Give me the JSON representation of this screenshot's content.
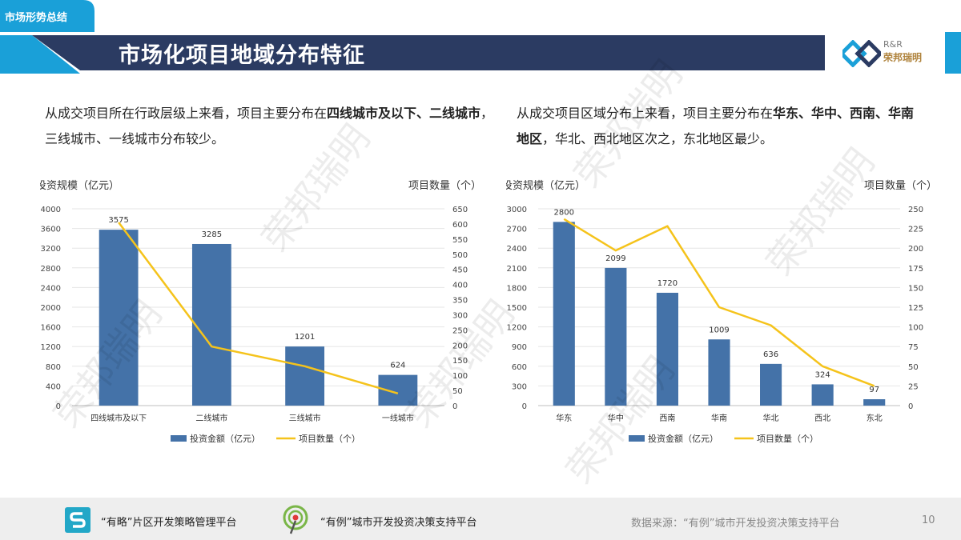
{
  "header": {
    "section_tag": "市场形势总结",
    "title": "市场化项目地域分布特征",
    "logo_text_en": "R&R",
    "logo_text_cn": "荣邦瑞明"
  },
  "left_text": {
    "p1": "从成交项目所在行政层级上来看，项目主要分布在",
    "b1": "四线城市及以下、二线城市",
    "p2": "，三线城市、一线城市分布较少。"
  },
  "right_text": {
    "p1": "从成交项目区域分布上来看，项目主要分布在",
    "b1": "华东、华中、西南、华南地区",
    "p2": "，华北、西北地区次之，东北地区最少。"
  },
  "watermark_text": "荣邦瑞明",
  "colors": {
    "bar": "#4472a8",
    "line": "#f5c31b",
    "banner": "#2b3b62",
    "accent": "#1aa0d8"
  },
  "chart_data": [
    {
      "type": "bar",
      "y_axis_title": "投资规模（亿元）",
      "y2_axis_title": "项目数量（个）",
      "categories": [
        "四线城市及以下",
        "二线城市",
        "三线城市",
        "一线城市"
      ],
      "series": [
        {
          "name": "投资金额（亿元）",
          "type": "bar",
          "axis": "left",
          "values": [
            3575,
            3285,
            1201,
            624
          ]
        },
        {
          "name": "项目数量（个）",
          "type": "line",
          "axis": "right",
          "values": [
            605,
            195,
            130,
            40
          ]
        }
      ],
      "data_labels": [
        "3575",
        "3285",
        "1201",
        "624"
      ],
      "ylim": [
        0,
        4000
      ],
      "y_ticks": [
        "0",
        "400",
        "800",
        "1200",
        "1600",
        "2000",
        "2400",
        "2800",
        "3200",
        "3600",
        "4000"
      ],
      "y2lim": [
        0,
        650
      ],
      "y2_ticks": [
        "0",
        "50",
        "100",
        "150",
        "200",
        "250",
        "300",
        "350",
        "400",
        "450",
        "500",
        "550",
        "600",
        "650"
      ],
      "legend": "bottom",
      "grid": true
    },
    {
      "type": "bar",
      "y_axis_title": "投资规模（亿元）",
      "y2_axis_title": "项目数量（个）",
      "categories": [
        "华东",
        "华中",
        "西南",
        "华南",
        "华北",
        "西北",
        "东北"
      ],
      "series": [
        {
          "name": "投资金额（亿元）",
          "type": "bar",
          "axis": "left",
          "values": [
            2800,
            2099,
            1720,
            1009,
            636,
            324,
            97
          ]
        },
        {
          "name": "项目数量（个）",
          "type": "line",
          "axis": "right",
          "values": [
            237,
            197,
            228,
            125,
            102,
            50,
            25
          ]
        }
      ],
      "data_labels": [
        "2800",
        "2099",
        "1720",
        "1009",
        "636",
        "324",
        "97"
      ],
      "ylim": [
        0,
        3000
      ],
      "y_ticks": [
        "0",
        "300",
        "600",
        "900",
        "1200",
        "1500",
        "1800",
        "2100",
        "2400",
        "2700",
        "3000"
      ],
      "y2lim": [
        0,
        250
      ],
      "y2_ticks": [
        "0",
        "25",
        "50",
        "75",
        "100",
        "125",
        "150",
        "175",
        "200",
        "225",
        "250"
      ],
      "legend": "bottom",
      "grid": true
    }
  ],
  "footer": {
    "brand1": "“有略”片区开发策略管理平台",
    "brand2": "“有例”城市开发投资决策支持平台",
    "source": "数据来源：“有例”城市开发投资决策支持平台",
    "page_number": "10"
  }
}
